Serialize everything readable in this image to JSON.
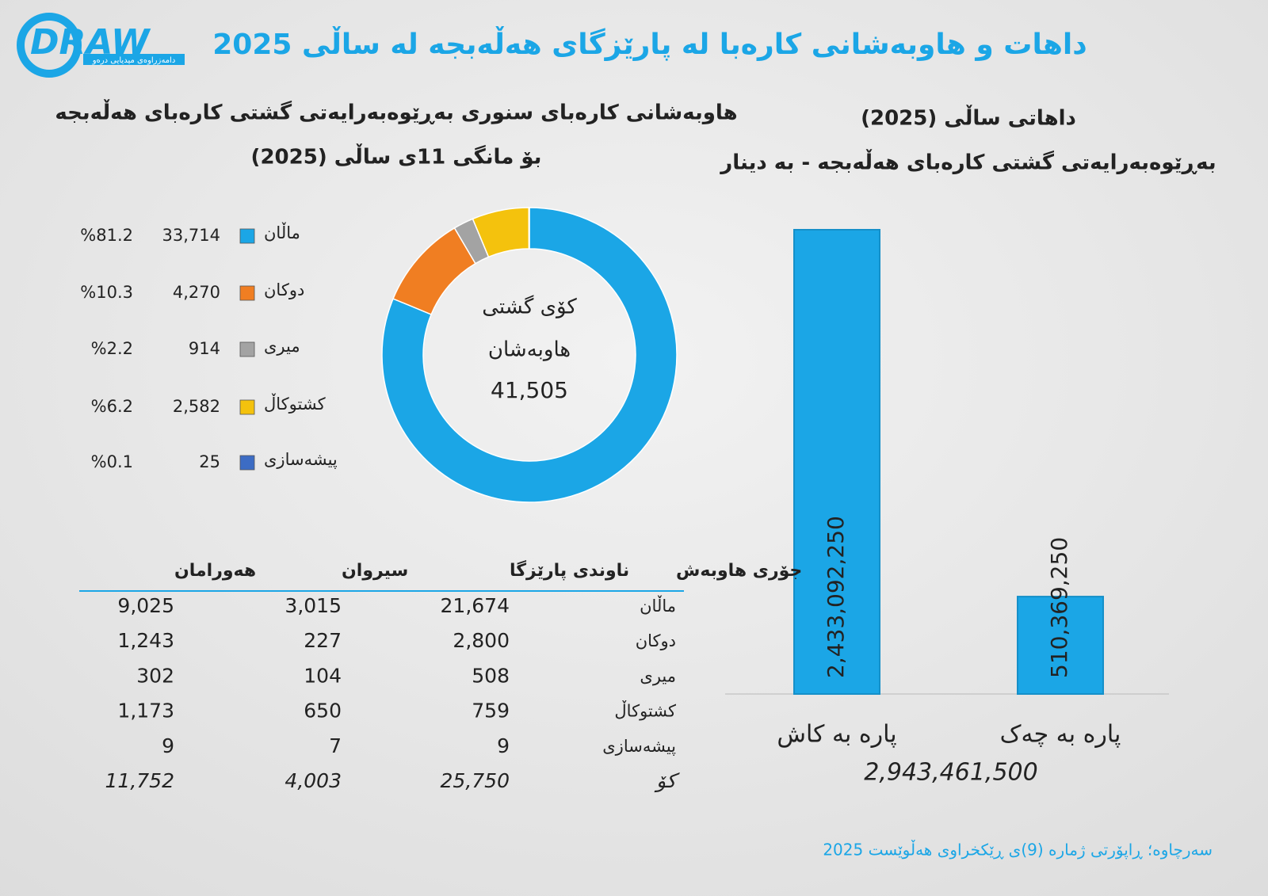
{
  "header": {
    "title": "داهات و هاوبەشانی کارەبا لە پارێزگای هەڵەبجە لە ساڵی 2025",
    "logo": "DRAW",
    "logo_sub": "دامەزراوەی میدیایی درەو"
  },
  "chart_data": [
    {
      "type": "donut",
      "title": "هاوبەشانی کارەبای سنوری بەڕێوەبەرایەتی گشتی کارەبای هەڵەبجە",
      "subtitle": "بۆ مانگی 11ی ساڵی (2025)",
      "center_title": "کۆی گشتی",
      "center_subtitle": "هاوبەشان",
      "total": {
        "value": 41505,
        "label": "41,505"
      },
      "categories": [
        "ماڵان",
        "دوکان",
        "میری",
        "کشتوکاڵ",
        "پیشەسازی"
      ],
      "values": [
        33714,
        4270,
        914,
        2582,
        25
      ],
      "value_labels": [
        "33,714",
        "4,270",
        "914",
        "2,582",
        "25"
      ],
      "percents": [
        81.2,
        10.3,
        2.2,
        6.2,
        0.1
      ],
      "percent_labels": [
        "%81.2",
        "%10.3",
        "%2.2",
        "%6.2",
        "%0.1"
      ],
      "colors": [
        "#1ba6e6",
        "#f07e22",
        "#a3a3a3",
        "#f4c20d",
        "#3c6cc4"
      ]
    },
    {
      "type": "bar",
      "title": "داهاتی ساڵی (2025)",
      "subtitle": "بەڕێوەبەرایەتی گشتی کارەبای هەڵەبجە - بە دینار",
      "categories": [
        "پارە بە کاش",
        "پارە بە چەک"
      ],
      "values": [
        2433092250,
        510369250
      ],
      "value_labels": [
        "2,433,092,250",
        "510,369,250"
      ],
      "total": {
        "value": 2943461500,
        "label": "2,943,461,500"
      },
      "color": "#1ba6e6"
    }
  ],
  "table": {
    "header": [
      "جۆری هاوبەش",
      "ناوندی پارێزگا",
      "سیروان",
      "هەورامان"
    ],
    "rows": [
      [
        "ماڵان",
        "21,674",
        "3,015",
        "9,025"
      ],
      [
        "دوکان",
        "2,800",
        "227",
        "1,243"
      ],
      [
        "میری",
        "508",
        "104",
        "302"
      ],
      [
        "کشتوکاڵ",
        "759",
        "650",
        "1,173"
      ],
      [
        "پیشەسازی",
        "9",
        "7",
        "9"
      ]
    ],
    "total": [
      "کۆ",
      "25,750",
      "4,003",
      "11,752"
    ]
  },
  "source": "سەرچاوە؛ ڕاپۆرتی ژمارە (9)ی ڕێکخراوی هەڵوێست 2025"
}
